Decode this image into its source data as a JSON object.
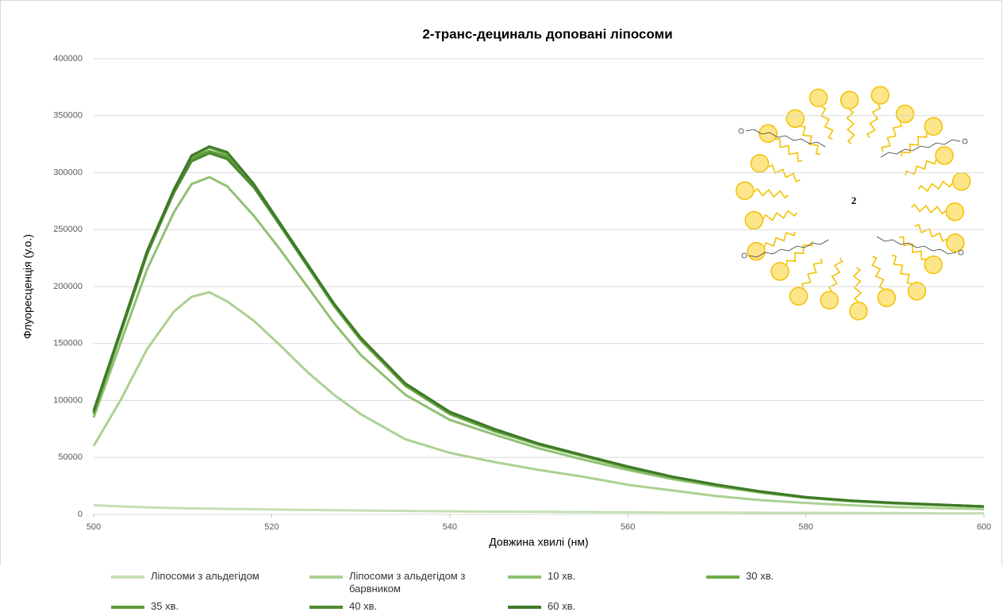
{
  "chart_data": {
    "type": "line",
    "title": "2-транс-дециналь доповані ліпосоми",
    "x_label": "Довжина хвилі (нм)",
    "y_label": "Флуоресценція (у.о.)",
    "annotation": "2",
    "x": [
      500,
      503,
      506,
      509,
      511,
      513,
      515,
      518,
      521,
      524,
      527,
      530,
      535,
      540,
      545,
      550,
      555,
      560,
      565,
      570,
      575,
      580,
      585,
      590,
      595,
      600
    ],
    "xlim": [
      500,
      600
    ],
    "xticks": [
      500,
      520,
      540,
      560,
      580,
      600
    ],
    "ylim": [
      0,
      400000
    ],
    "yticks": [
      0,
      50000,
      100000,
      150000,
      200000,
      250000,
      300000,
      350000,
      400000
    ],
    "grid": true,
    "legend": "bottom",
    "series": [
      {
        "name": "Ліпосоми з альдегідом",
        "color": "#c5dfb3",
        "values": [
          8000,
          7000,
          6200,
          5600,
          5200,
          5000,
          4800,
          4500,
          4200,
          3900,
          3600,
          3400,
          3000,
          2700,
          2400,
          2200,
          2000,
          1800,
          1600,
          1500,
          1400,
          1300,
          1200,
          1100,
          1000,
          1000
        ]
      },
      {
        "name": "Ліпосоми з альдегідом з барвником",
        "color": "#acd193",
        "values": [
          60000,
          100000,
          145000,
          178000,
          191000,
          195000,
          187000,
          170000,
          148000,
          125000,
          105000,
          88000,
          66000,
          54000,
          46000,
          39000,
          33000,
          26000,
          21000,
          16000,
          12500,
          10000,
          8000,
          6500,
          5500,
          4500
        ]
      },
      {
        "name": "10 хв.",
        "color": "#8fc172",
        "values": [
          85000,
          150000,
          215000,
          265000,
          290000,
          296000,
          288000,
          262000,
          232000,
          200000,
          168000,
          140000,
          105000,
          83000,
          70000,
          58000,
          48000,
          39000,
          31000,
          24500,
          19000,
          14500,
          11500,
          9500,
          8000,
          6500
        ]
      },
      {
        "name": "30 хв.",
        "color": "#70ad47",
        "values": [
          88000,
          158000,
          228000,
          283000,
          313000,
          322000,
          316000,
          289000,
          254000,
          218000,
          183000,
          153000,
          113000,
          88000,
          73000,
          61000,
          51000,
          41000,
          32500,
          25500,
          19500,
          15000,
          12000,
          10000,
          8300,
          7000
        ]
      },
      {
        "name": "35 хв.",
        "color": "#5f9e3c",
        "values": [
          89000,
          159000,
          229000,
          283000,
          312000,
          319000,
          314000,
          288000,
          253000,
          218000,
          184000,
          154000,
          114000,
          89000,
          74000,
          62000,
          51500,
          41500,
          33000,
          26000,
          20000,
          15000,
          12000,
          10000,
          8400,
          7000
        ]
      },
      {
        "name": "40 хв.",
        "color": "#4d8b31",
        "values": [
          90000,
          160000,
          229000,
          282000,
          310000,
          317000,
          312000,
          287000,
          253000,
          219000,
          185000,
          155000,
          115000,
          90000,
          75000,
          62000,
          52000,
          42000,
          33000,
          26000,
          20000,
          15200,
          12100,
          10100,
          8500,
          7000
        ]
      },
      {
        "name": "60 хв.",
        "color": "#3e7a28",
        "values": [
          91000,
          161000,
          231000,
          285000,
          315000,
          323000,
          318000,
          290000,
          255000,
          220000,
          185000,
          155000,
          115000,
          90000,
          75000,
          62000,
          52000,
          42000,
          33000,
          26000,
          20000,
          15000,
          12000,
          10000,
          8500,
          7000
        ]
      }
    ]
  }
}
